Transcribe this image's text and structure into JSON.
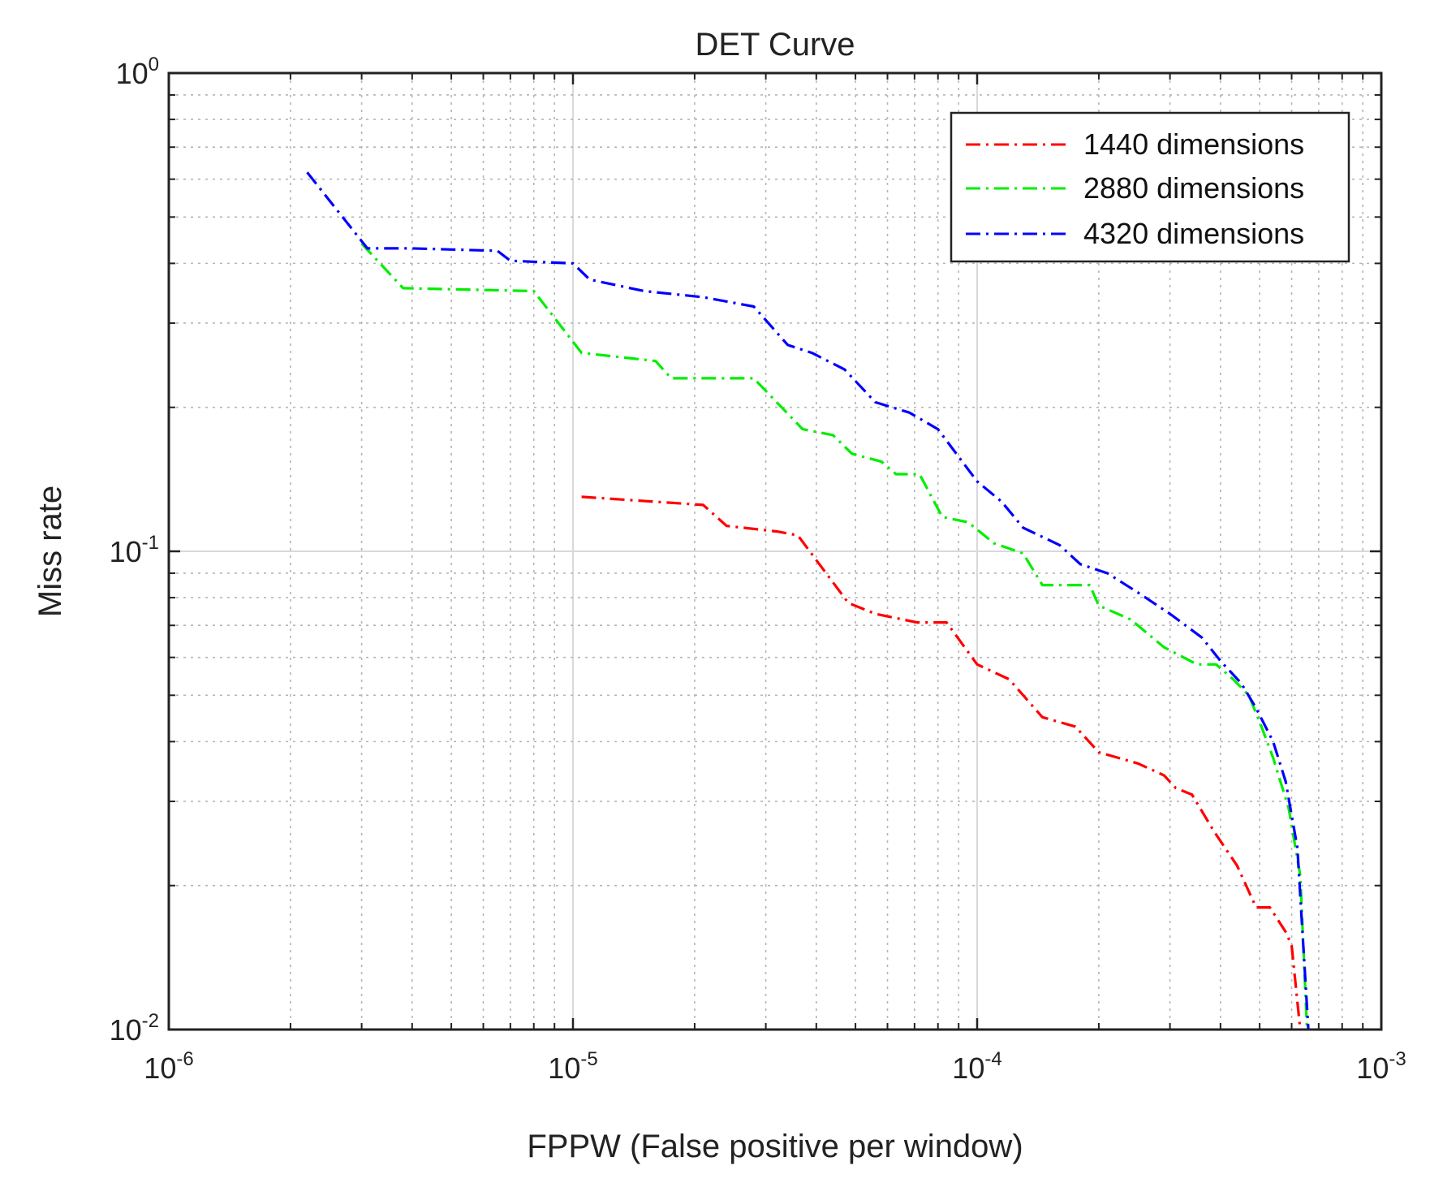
{
  "chart_data": {
    "type": "line",
    "title": "DET Curve",
    "xlabel": "FPPW (False positive per window)",
    "ylabel": "Miss rate",
    "xscale": "log",
    "yscale": "log",
    "xlim": [
      1e-06,
      0.001
    ],
    "ylim": [
      0.01,
      1
    ],
    "grid": true,
    "legend_position": "top-right",
    "x_ticks": [
      {
        "base": "10",
        "exp": "-6",
        "value": 1e-06
      },
      {
        "base": "10",
        "exp": "-5",
        "value": 1e-05
      },
      {
        "base": "10",
        "exp": "-4",
        "value": 0.0001
      },
      {
        "base": "10",
        "exp": "-3",
        "value": 0.001
      }
    ],
    "y_ticks": [
      {
        "base": "10",
        "exp": "-2",
        "value": 0.01
      },
      {
        "base": "10",
        "exp": "-1",
        "value": 0.1
      },
      {
        "base": "10",
        "exp": "0",
        "value": 1
      }
    ],
    "series": [
      {
        "name": "1440 dimensions",
        "color": "#ff0000",
        "x": [
          1.05e-05,
          2.1e-05,
          2.4e-05,
          3.2e-05,
          3.6e-05,
          4.8e-05,
          5.6e-05,
          7.1e-05,
          8.4e-05,
          0.0001,
          0.00012,
          0.000145,
          0.000175,
          0.0002,
          0.00025,
          0.00029,
          0.00031,
          0.00034,
          0.000385,
          0.00044,
          0.00049,
          0.00053,
          0.00058,
          0.0006,
          0.00063
        ],
        "y": [
          0.13,
          0.125,
          0.113,
          0.11,
          0.108,
          0.078,
          0.074,
          0.071,
          0.071,
          0.058,
          0.054,
          0.045,
          0.043,
          0.038,
          0.036,
          0.034,
          0.032,
          0.031,
          0.026,
          0.022,
          0.018,
          0.018,
          0.016,
          0.015,
          0.01
        ]
      },
      {
        "name": "2880 dimensions",
        "color": "#00ee00",
        "x": [
          3e-06,
          3.8e-06,
          8e-06,
          1.05e-05,
          1.6e-05,
          1.75e-05,
          2.8e-05,
          3.7e-05,
          4.4e-05,
          4.9e-05,
          5.8e-05,
          6.3e-05,
          7.2e-05,
          8.2e-05,
          9.5e-05,
          0.00011,
          0.00013,
          0.000145,
          0.00019,
          0.0002,
          0.00024,
          0.00029,
          0.00035,
          0.00039,
          0.00043,
          0.00047,
          0.0005,
          0.00054,
          0.00059,
          0.00063,
          0.000655
        ],
        "y": [
          0.44,
          0.355,
          0.35,
          0.26,
          0.25,
          0.23,
          0.23,
          0.18,
          0.175,
          0.16,
          0.154,
          0.145,
          0.145,
          0.118,
          0.115,
          0.104,
          0.099,
          0.085,
          0.085,
          0.077,
          0.072,
          0.063,
          0.058,
          0.058,
          0.054,
          0.05,
          0.044,
          0.037,
          0.029,
          0.021,
          0.01
        ]
      },
      {
        "name": "4320 dimensions",
        "color": "#0000ff",
        "x": [
          2.2e-06,
          3.1e-06,
          4e-06,
          6.5e-06,
          7e-06,
          1e-05,
          1.1e-05,
          1.5e-05,
          2.1e-05,
          2.8e-05,
          3.4e-05,
          3.9e-05,
          4.7e-05,
          5.6e-05,
          6.8e-05,
          8e-05,
          0.0001,
          0.000115,
          0.00013,
          0.00016,
          0.00018,
          0.00021,
          0.00025,
          0.0003,
          0.00036,
          0.0004,
          0.00045,
          0.00049,
          0.00054,
          0.00058,
          0.00062,
          0.00066
        ],
        "y": [
          0.62,
          0.43,
          0.43,
          0.425,
          0.405,
          0.4,
          0.37,
          0.35,
          0.34,
          0.325,
          0.27,
          0.26,
          0.24,
          0.205,
          0.195,
          0.18,
          0.14,
          0.127,
          0.112,
          0.103,
          0.094,
          0.09,
          0.082,
          0.074,
          0.066,
          0.059,
          0.053,
          0.047,
          0.04,
          0.033,
          0.024,
          0.01
        ]
      }
    ]
  }
}
